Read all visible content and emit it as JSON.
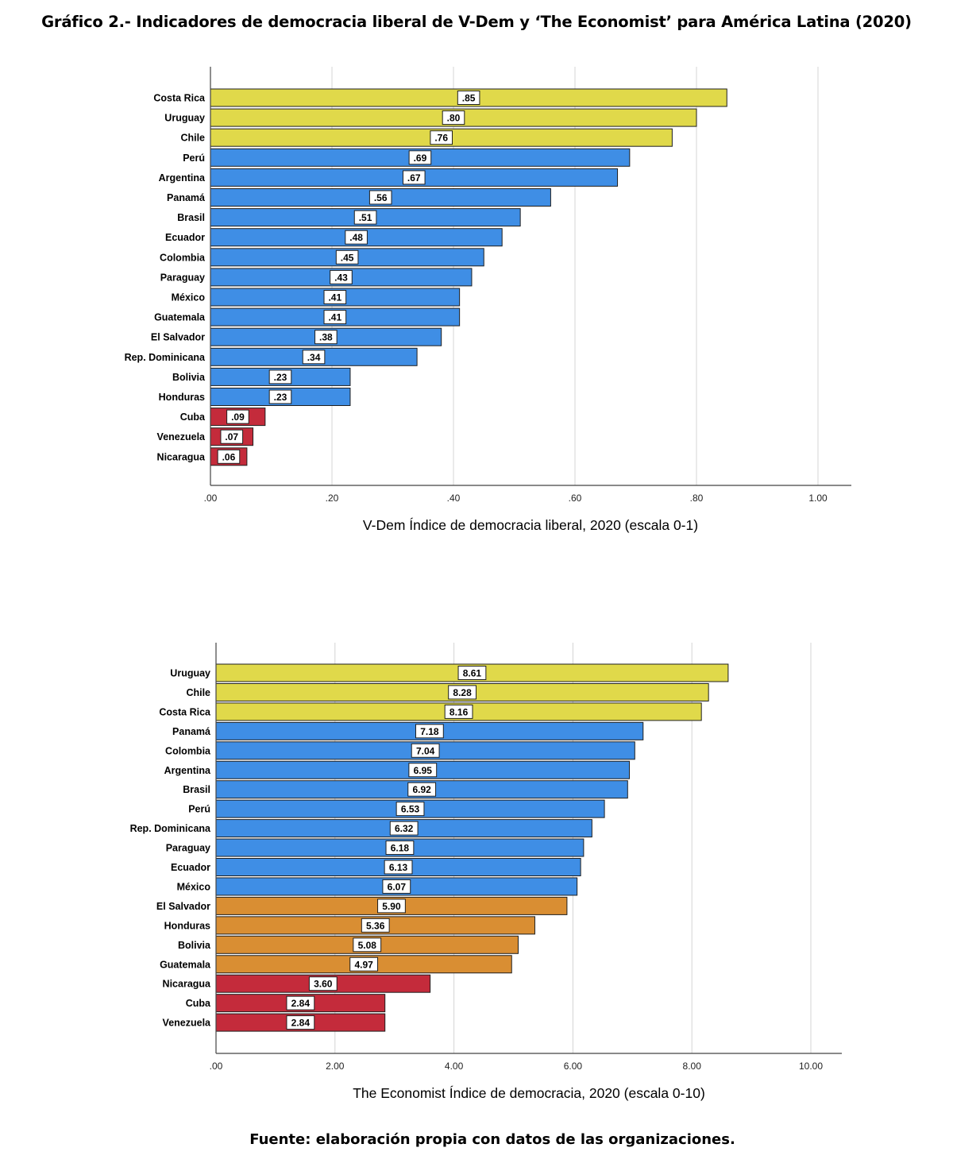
{
  "title": "Gráfico 2.- Indicadores de democracia liberal de V-Dem y ‘The Economist’ para América Latina (2020)",
  "source": "Fuente: elaboración propia con datos de las organizaciones.",
  "colors": {
    "yellow": "#e0d94a",
    "blue": "#3f8ee5",
    "orange": "#d98e33",
    "red": "#c42b3b"
  },
  "chart_data": [
    {
      "type": "bar",
      "orientation": "horizontal",
      "title": "",
      "xlabel": "V-Dem Índice de democracia liberal, 2020 (escala 0-1)",
      "ylabel": "",
      "xlim": [
        0,
        1.05
      ],
      "xticks": [
        0,
        0.2,
        0.4,
        0.6,
        0.8,
        1.0
      ],
      "xtick_labels": [
        ".00",
        ".20",
        ".40",
        ".60",
        ".80",
        "1.00"
      ],
      "grid": "vertical",
      "categories": [
        "Costa Rica",
        "Uruguay",
        "Chile",
        "Perú",
        "Argentina",
        "Panamá",
        "Brasil",
        "Ecuador",
        "Colombia",
        "Paraguay",
        "México",
        "Guatemala",
        "El Salvador",
        "Rep. Dominicana",
        "Bolivia",
        "Honduras",
        "Cuba",
        "Venezuela",
        "Nicaragua"
      ],
      "values": [
        0.85,
        0.8,
        0.76,
        0.69,
        0.67,
        0.56,
        0.51,
        0.48,
        0.45,
        0.43,
        0.41,
        0.41,
        0.38,
        0.34,
        0.23,
        0.23,
        0.09,
        0.07,
        0.06
      ],
      "value_labels": [
        ".85",
        ".80",
        ".76",
        ".69",
        ".67",
        ".56",
        ".51",
        ".48",
        ".45",
        ".43",
        ".41",
        ".41",
        ".38",
        ".34",
        ".23",
        ".23",
        ".09",
        ".07",
        ".06"
      ],
      "bar_colors": [
        "yellow",
        "yellow",
        "yellow",
        "blue",
        "blue",
        "blue",
        "blue",
        "blue",
        "blue",
        "blue",
        "blue",
        "blue",
        "blue",
        "blue",
        "blue",
        "blue",
        "red",
        "red",
        "red"
      ]
    },
    {
      "type": "bar",
      "orientation": "horizontal",
      "title": "",
      "xlabel": "The Economist Índice de democracia, 2020 (escala 0-10)",
      "ylabel": "",
      "xlim": [
        0,
        10.5
      ],
      "xticks": [
        0,
        2,
        4,
        6,
        8,
        10
      ],
      "xtick_labels": [
        ".00",
        "2.00",
        "4.00",
        "6.00",
        "8.00",
        "10.00"
      ],
      "grid": "vertical",
      "categories": [
        "Uruguay",
        "Chile",
        "Costa Rica",
        "Panamá",
        "Colombia",
        "Argentina",
        "Brasil",
        "Perú",
        "Rep. Dominicana",
        "Paraguay",
        "Ecuador",
        "México",
        "El Salvador",
        "Honduras",
        "Bolivia",
        "Guatemala",
        "Nicaragua",
        "Cuba",
        "Venezuela"
      ],
      "values": [
        8.61,
        8.28,
        8.16,
        7.18,
        7.04,
        6.95,
        6.92,
        6.53,
        6.32,
        6.18,
        6.13,
        6.07,
        5.9,
        5.36,
        5.08,
        4.97,
        3.6,
        2.84,
        2.84
      ],
      "value_labels": [
        "8.61",
        "8.28",
        "8.16",
        "7.18",
        "7.04",
        "6.95",
        "6.92",
        "6.53",
        "6.32",
        "6.18",
        "6.13",
        "6.07",
        "5.90",
        "5.36",
        "5.08",
        "4.97",
        "3.60",
        "2.84",
        "2.84"
      ],
      "bar_colors": [
        "yellow",
        "yellow",
        "yellow",
        "blue",
        "blue",
        "blue",
        "blue",
        "blue",
        "blue",
        "blue",
        "blue",
        "blue",
        "orange",
        "orange",
        "orange",
        "orange",
        "red",
        "red",
        "red"
      ]
    }
  ]
}
